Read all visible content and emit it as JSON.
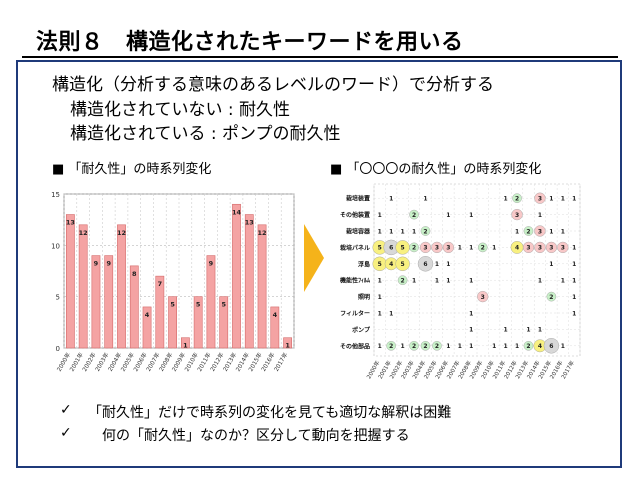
{
  "slide": {
    "title": "法則８　構造化されたキーワードを用いる",
    "line1": "構造化（分析する意味のあるレベルのワード）で分析する",
    "line2": "構造化されていない : 耐久性",
    "line3": "構造化されている : ポンプの耐久性",
    "caption_left": "■ 「耐久性」の時系列変化",
    "caption_right": "■ 「〇〇〇の耐久性」の時系列変化",
    "check_mark": "✓",
    "check1": "「耐久性」だけで時系列の変化を見ても適切な解釈は困難",
    "check2": "何の「耐久性」なのか？区分して動向を把握する"
  },
  "colors": {
    "bar_fill": "#f4a3a3",
    "bar_stroke": "#d46a6a",
    "arrow": "#f5b31a",
    "panel_border": "#1f3a7a"
  },
  "chart_data": [
    {
      "type": "bar",
      "categories": [
        "2000年",
        "2001年",
        "2002年",
        "2003年",
        "2004年",
        "2005年",
        "2006年",
        "2007年",
        "2008年",
        "2009年",
        "2010年",
        "2011年",
        "2012年",
        "2013年",
        "2014年",
        "2015年",
        "2016年",
        "2017年"
      ],
      "values": [
        13,
        12,
        9,
        9,
        12,
        8,
        4,
        7,
        5,
        1,
        5,
        9,
        5,
        14,
        13,
        12,
        4,
        1
      ],
      "ylim": [
        0,
        15
      ],
      "yticks": [
        0,
        5,
        10,
        15
      ],
      "grid": true
    },
    {
      "type": "table",
      "categories": [
        "2000年",
        "2001年",
        "2002年",
        "2003年",
        "2004年",
        "2005年",
        "2006年",
        "2007年",
        "2008年",
        "2009年",
        "2010年",
        "2011年",
        "2012年",
        "2013年",
        "2014年",
        "2015年",
        "2016年",
        "2017年"
      ],
      "rows": [
        {
          "name": "栽培装置",
          "values": [
            0,
            1,
            0,
            0,
            1,
            0,
            0,
            0,
            0,
            0,
            0,
            1,
            2,
            0,
            3,
            1,
            1,
            1
          ]
        },
        {
          "name": "その他装置",
          "values": [
            1,
            0,
            0,
            2,
            0,
            0,
            1,
            0,
            1,
            0,
            0,
            0,
            3,
            0,
            1,
            0,
            0,
            0
          ]
        },
        {
          "name": "栽培容器",
          "values": [
            1,
            1,
            1,
            1,
            2,
            0,
            0,
            0,
            0,
            0,
            0,
            0,
            1,
            2,
            3,
            1,
            1,
            0
          ]
        },
        {
          "name": "栽培パネル",
          "values": [
            5,
            6,
            5,
            2,
            3,
            3,
            3,
            1,
            1,
            2,
            1,
            0,
            4,
            3,
            3,
            3,
            3,
            1
          ]
        },
        {
          "name": "浮島",
          "values": [
            5,
            4,
            5,
            0,
            6,
            1,
            1,
            0,
            0,
            0,
            0,
            0,
            0,
            0,
            0,
            1,
            0,
            1
          ]
        },
        {
          "name": "機能性ﾌｨﾙﾑ",
          "values": [
            1,
            0,
            2,
            1,
            0,
            1,
            1,
            0,
            1,
            0,
            0,
            0,
            0,
            0,
            1,
            0,
            1,
            1
          ]
        },
        {
          "name": "照明",
          "values": [
            1,
            0,
            0,
            0,
            0,
            0,
            0,
            0,
            0,
            3,
            0,
            0,
            0,
            0,
            0,
            2,
            0,
            1
          ]
        },
        {
          "name": "フィルター",
          "values": [
            1,
            1,
            0,
            0,
            0,
            0,
            0,
            0,
            1,
            0,
            0,
            0,
            0,
            0,
            0,
            0,
            0,
            1
          ]
        },
        {
          "name": "ポンプ",
          "values": [
            0,
            0,
            0,
            0,
            0,
            0,
            0,
            0,
            1,
            0,
            0,
            1,
            0,
            1,
            1,
            0,
            0,
            0
          ]
        },
        {
          "name": "その他部品",
          "values": [
            1,
            2,
            1,
            2,
            2,
            2,
            1,
            1,
            1,
            0,
            1,
            1,
            1,
            2,
            4,
            6,
            1,
            0
          ]
        }
      ]
    }
  ]
}
